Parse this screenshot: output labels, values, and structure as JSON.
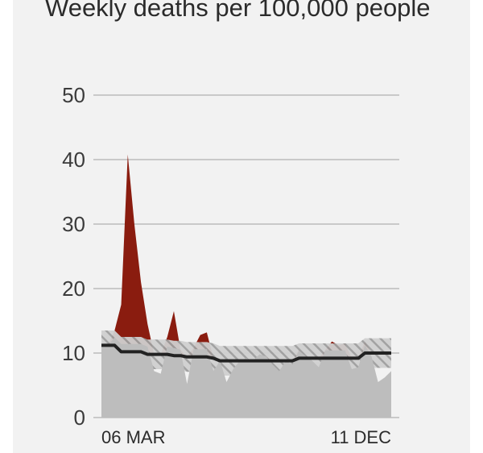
{
  "chart_data": {
    "type": "area",
    "title": "Weekly deaths per 100,000 people",
    "x_tick_labels": [
      "06 MAR",
      "11 DEC"
    ],
    "ylim": [
      0,
      50
    ],
    "yticks": [
      0,
      10,
      20,
      30,
      40,
      50
    ],
    "grid": true,
    "n_weeks": 45,
    "series": [
      {
        "values": [
          11.2,
          11.2,
          13.5,
          17.5,
          40.8,
          30,
          21,
          14.5,
          7.2,
          6.8,
          12.5,
          16.5,
          10.5,
          5.2,
          10.8,
          12.8,
          13.2,
          7.2,
          8.8,
          5.5,
          7.5,
          8.8,
          9.2,
          8.8,
          9.8,
          9.5,
          8.2,
          7.2,
          8.8,
          8.2,
          10.5,
          9.5,
          8.8,
          7.8,
          10.5,
          11.8,
          11.2,
          11.5,
          7.5,
          7.8,
          11.8,
          9.5,
          5.5,
          6.2,
          7.2
        ],
        "color": "#8a1c0f"
      },
      {
        "values": [
          11.2,
          11.2,
          11.2,
          10.2,
          10.2,
          10.2,
          10.2,
          9.8,
          9.8,
          9.8,
          9.8,
          9.6,
          9.6,
          9.4,
          9.4,
          9.4,
          9.4,
          9.2,
          8.8,
          8.8,
          8.8,
          8.8,
          8.8,
          8.8,
          8.8,
          8.8,
          8.8,
          8.8,
          8.8,
          8.8,
          9.2,
          9.2,
          9.2,
          9.2,
          9.2,
          9.2,
          9.2,
          9.2,
          9.2,
          9.2,
          10.0,
          10.0,
          10.0,
          10.0,
          10.0
        ],
        "color": "#222222"
      }
    ],
    "colors": {
      "excess": "#8a1c0f",
      "actual_fill": "#bdbdbd",
      "expected_line": "#222222",
      "range_hatch": "#a5a5a5",
      "grid": "#c9c9c9"
    }
  }
}
